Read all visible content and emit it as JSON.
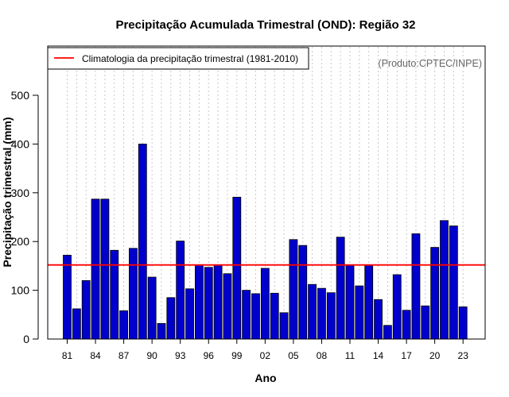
{
  "chart_data": {
    "type": "bar",
    "title": "Precipitação Acumulada Trimestral (OND): Região 32",
    "xlabel": "Ano",
    "ylabel": "Precipitação trimestral (mm)",
    "credit": "(Produto:CPTEC/INPE)",
    "legend": {
      "label": "Climatologia da precipitação trimestral (1981-2010)",
      "placement": "top-left"
    },
    "ylim": [
      0,
      590
    ],
    "yticks": [
      0,
      100,
      200,
      300,
      400,
      500
    ],
    "climatology": 152,
    "years": [
      1981,
      1982,
      1983,
      1984,
      1985,
      1986,
      1987,
      1988,
      1989,
      1990,
      1991,
      1992,
      1993,
      1994,
      1995,
      1996,
      1997,
      1998,
      1999,
      2000,
      2001,
      2002,
      2003,
      2004,
      2005,
      2006,
      2007,
      2008,
      2009,
      2010,
      2011,
      2012,
      2013,
      2014,
      2015,
      2016,
      2017,
      2018,
      2019,
      2020,
      2021,
      2022,
      2023
    ],
    "values": [
      172,
      62,
      120,
      287,
      287,
      182,
      58,
      186,
      400,
      127,
      32,
      85,
      201,
      103,
      152,
      147,
      152,
      134,
      291,
      100,
      93,
      145,
      94,
      54,
      204,
      192,
      112,
      104,
      95,
      209,
      152,
      109,
      152,
      81,
      28,
      132,
      59,
      216,
      68,
      188,
      243,
      232,
      66
    ],
    "xtick_years": [
      1981,
      1984,
      1987,
      1990,
      1993,
      1996,
      1999,
      2002,
      2005,
      2008,
      2011,
      2014,
      2017,
      2020,
      2023
    ],
    "xtick_labels": [
      "81",
      "84",
      "87",
      "90",
      "93",
      "96",
      "99",
      "02",
      "05",
      "08",
      "11",
      "14",
      "17",
      "20",
      "23"
    ],
    "colors": {
      "bar_fill": "#0000cd",
      "bar_edge": "#000000",
      "climatology_line": "#ff0000",
      "grid": "#c8c8c8"
    }
  }
}
